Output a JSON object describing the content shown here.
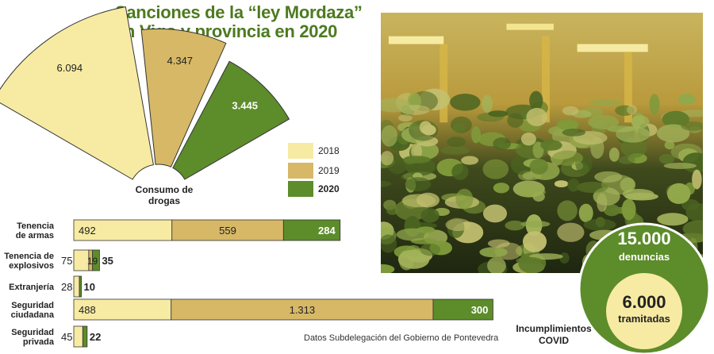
{
  "title": {
    "line1": "Sanciones de la “ley Mordaza”",
    "line2": "en Vigo  y provincia en 2020"
  },
  "colors": {
    "y2018": "#f7eba3",
    "y2019": "#d6b866",
    "y2020": "#5d8c2b",
    "title": "#4d7a1f",
    "outline": "#333333"
  },
  "legend": [
    {
      "label": "2018",
      "color": "#f7eba3"
    },
    {
      "label": "2019",
      "color": "#d6b866"
    },
    {
      "label": "2020",
      "color": "#5d8c2b"
    }
  ],
  "chart_data": [
    {
      "type": "pie",
      "title": "Consumo de drogas",
      "categories": [
        "2018",
        "2019",
        "2020"
      ],
      "values": [
        6094,
        4347,
        3445
      ],
      "value_labels": [
        "6.094",
        "4.347",
        "3.445"
      ]
    },
    {
      "type": "bar",
      "orientation": "horizontal",
      "stacked": true,
      "categories": [
        "Tenencia de armas",
        "Tenencia de explosivos",
        "Extranjería",
        "Seguridad ciudadana",
        "Seguridad privada"
      ],
      "category_lines": [
        [
          "Tenencia",
          "de armas"
        ],
        [
          "Tenencia de",
          "explosivos"
        ],
        [
          "Extranjería"
        ],
        [
          "Seguridad",
          "ciudadana"
        ],
        [
          "Seguridad",
          "privada"
        ]
      ],
      "series": [
        {
          "name": "2018",
          "values": [
            492,
            75,
            28,
            488,
            45
          ],
          "labels": [
            "492",
            "75",
            "28",
            "488",
            "45"
          ]
        },
        {
          "name": "2019",
          "values": [
            559,
            19,
            0,
            1313,
            0
          ],
          "labels": [
            "559",
            "19",
            "",
            "1.313",
            ""
          ]
        },
        {
          "name": "2020",
          "values": [
            284,
            35,
            10,
            300,
            22
          ],
          "labels": [
            "284",
            "35",
            "10",
            "300",
            "22"
          ]
        }
      ]
    }
  ],
  "source": "Datos Subdelegación del Gobierno de Pontevedra",
  "covid": {
    "denuncias_value": "15.000",
    "denuncias_label": "denuncias",
    "tramitadas_value": "6.000",
    "tramitadas_label": "tramitadas",
    "caption_line1": "Incumplimientos",
    "caption_line2": "COVID"
  },
  "photo": {
    "description_icon": "cannabis-plants-photo"
  }
}
